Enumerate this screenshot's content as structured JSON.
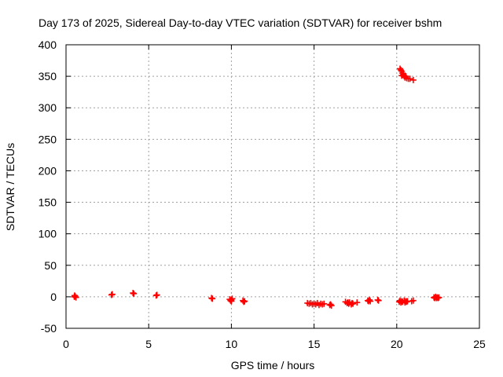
{
  "chart_data": {
    "type": "scatter",
    "title": "Day 173 of 2025, Sidereal Day-to-day VTEC variation (SDTVAR) for receiver bshm",
    "xlabel": "GPS time / hours",
    "ylabel": "SDTVAR / TECUs",
    "xlim": [
      0,
      25
    ],
    "ylim": [
      -50,
      400
    ],
    "xticks": [
      0,
      5,
      10,
      15,
      20,
      25
    ],
    "yticks": [
      -50,
      0,
      50,
      100,
      150,
      200,
      250,
      300,
      350,
      400
    ],
    "grid": true,
    "marker": "plus",
    "color": "#ff0000",
    "series": [
      {
        "name": "SDTVAR",
        "points": [
          [
            0.5,
            0
          ],
          [
            0.55,
            1
          ],
          [
            0.6,
            -1
          ],
          [
            0.52,
            2
          ],
          [
            2.75,
            3
          ],
          [
            2.8,
            4
          ],
          [
            4.05,
            6
          ],
          [
            4.1,
            5
          ],
          [
            5.45,
            2
          ],
          [
            5.5,
            3
          ],
          [
            8.8,
            -2
          ],
          [
            8.85,
            -3
          ],
          [
            9.9,
            -4
          ],
          [
            9.95,
            -6
          ],
          [
            10.0,
            -5
          ],
          [
            10.05,
            -3
          ],
          [
            10.0,
            -7
          ],
          [
            10.7,
            -6
          ],
          [
            10.75,
            -8
          ],
          [
            10.8,
            -7
          ],
          [
            14.6,
            -10
          ],
          [
            14.7,
            -11
          ],
          [
            14.8,
            -10
          ],
          [
            14.9,
            -12
          ],
          [
            15.0,
            -11
          ],
          [
            15.1,
            -12
          ],
          [
            15.2,
            -10
          ],
          [
            15.3,
            -13
          ],
          [
            15.4,
            -11
          ],
          [
            15.5,
            -12
          ],
          [
            15.6,
            -11
          ],
          [
            15.95,
            -13
          ],
          [
            16.0,
            -12
          ],
          [
            16.05,
            -14
          ],
          [
            16.9,
            -8
          ],
          [
            17.0,
            -10
          ],
          [
            17.05,
            -9
          ],
          [
            17.1,
            -11
          ],
          [
            17.15,
            -9
          ],
          [
            17.25,
            -12
          ],
          [
            17.3,
            -10
          ],
          [
            17.35,
            -11
          ],
          [
            17.6,
            -9
          ],
          [
            18.25,
            -6
          ],
          [
            18.3,
            -7
          ],
          [
            18.35,
            -5
          ],
          [
            18.4,
            -7
          ],
          [
            18.85,
            -5
          ],
          [
            18.9,
            -6
          ],
          [
            20.15,
            -8
          ],
          [
            20.2,
            -6
          ],
          [
            20.25,
            -9
          ],
          [
            20.3,
            -7
          ],
          [
            20.35,
            -8
          ],
          [
            20.45,
            -6
          ],
          [
            20.5,
            -9
          ],
          [
            20.55,
            -7
          ],
          [
            20.6,
            -8
          ],
          [
            20.65,
            -7
          ],
          [
            20.9,
            -7
          ],
          [
            21.0,
            -6
          ],
          [
            22.25,
            -1
          ],
          [
            22.3,
            -2
          ],
          [
            22.35,
            0
          ],
          [
            22.4,
            -2
          ],
          [
            22.45,
            -1
          ],
          [
            22.5,
            -2
          ],
          [
            22.55,
            -1
          ],
          [
            20.2,
            362
          ],
          [
            20.25,
            360
          ],
          [
            20.3,
            358
          ],
          [
            20.35,
            355
          ],
          [
            20.3,
            351
          ],
          [
            20.4,
            353
          ],
          [
            20.45,
            350
          ],
          [
            20.5,
            348
          ],
          [
            20.55,
            350
          ],
          [
            20.6,
            347
          ],
          [
            20.7,
            346
          ],
          [
            20.8,
            346
          ],
          [
            21.0,
            344
          ]
        ]
      }
    ]
  }
}
